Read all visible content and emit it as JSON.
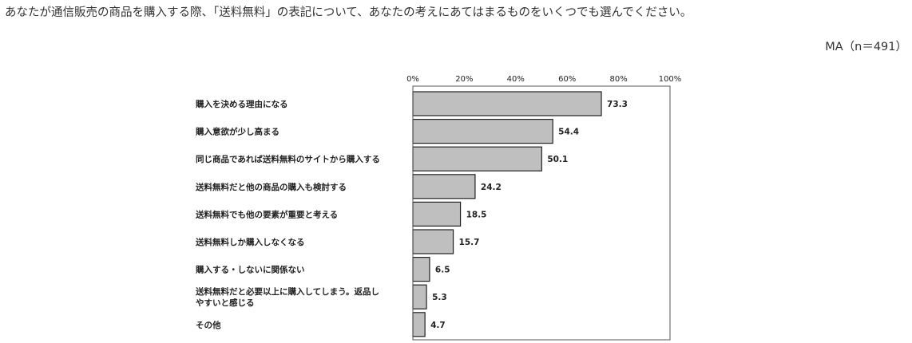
{
  "question": "あなたが通信販売の商品を購入する際、「送料無料」の表記について、あなたの考えにあてはまるものをいくつでも選んでください。",
  "sample_note": "MA（n＝491）",
  "chart_data": {
    "type": "bar",
    "orientation": "horizontal",
    "categories": [
      "購入を決める理由になる",
      "購入意欲が少し高まる",
      "同じ商品であれば送料無料のサイトから購入する",
      "送料無料だと他の商品の購入も検討する",
      "送料無料でも他の要素が重要と考える",
      "送料無料しか購入しなくなる",
      "購入する・しないに関係ない",
      "送料無料だと必要以上に購入してしまう。返品しやすいと感じる",
      "その他"
    ],
    "category_lines": [
      [
        "購入を決める理由になる"
      ],
      [
        "購入意欲が少し高まる"
      ],
      [
        "同じ商品であれば送料無料のサイトから購入する"
      ],
      [
        "送料無料だと他の商品の購入も検討する"
      ],
      [
        "送料無料でも他の要素が重要と考える"
      ],
      [
        "送料無料しか購入しなくなる"
      ],
      [
        "購入する・しないに関係ない"
      ],
      [
        "送料無料だと必要以上に購入してしまう。返品し",
        "やすいと感じる"
      ],
      [
        "その他"
      ]
    ],
    "values": [
      73.3,
      54.4,
      50.1,
      24.2,
      18.5,
      15.7,
      6.5,
      5.3,
      4.7
    ],
    "value_labels": [
      "73.3",
      "54.4",
      "50.1",
      "24.2",
      "18.5",
      "15.7",
      "6.5",
      "5.3",
      "4.7"
    ],
    "xlim": [
      0,
      100
    ],
    "xticks": [
      0,
      20,
      40,
      60,
      80,
      100
    ],
    "xtick_labels": [
      "0%",
      "20%",
      "40%",
      "60%",
      "80%",
      "100%"
    ],
    "axis_position": "top",
    "grid": false,
    "bar_color": "#bfbfbf",
    "bar_edge_color": "#222222",
    "title": "",
    "xlabel": "",
    "ylabel": ""
  }
}
